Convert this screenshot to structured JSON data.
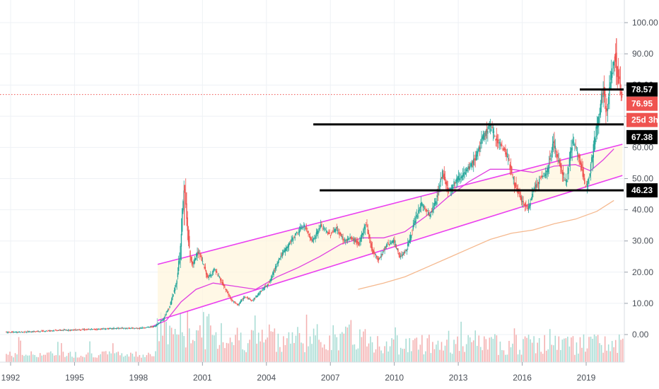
{
  "chart_data": {
    "type": "candlestick",
    "x_ticks": [
      "1992",
      "1995",
      "1998",
      "2001",
      "2004",
      "2007",
      "2010",
      "2013",
      "2016",
      "2019"
    ],
    "y_ticks": [
      "100.00",
      "90.00",
      "80.00",
      "70.00",
      "60.00",
      "50.00",
      "40.00",
      "30.00",
      "20.00",
      "10.00",
      "0.00"
    ],
    "ylim": [
      -8,
      103
    ],
    "grid": true,
    "price_tags": [
      {
        "label": "78.57",
        "style": "level"
      },
      {
        "label": "76.95",
        "style": "last-price"
      },
      {
        "label": "25d 3h",
        "style": "countdown"
      },
      {
        "label": "67.38",
        "style": "level"
      },
      {
        "label": "46.23",
        "style": "level"
      }
    ],
    "horizontal_levels": [
      {
        "value": 78.57,
        "from_year": 2018.7,
        "to_year": 2020.5
      },
      {
        "value": 67.38,
        "from_year": 2006.2,
        "to_year": 2020.5
      },
      {
        "value": 46.23,
        "from_year": 2006.5,
        "to_year": 2020.5
      }
    ],
    "last_price_line": 76.95,
    "channel_lines": [
      {
        "name": "upper",
        "from": [
          1998.9,
          22.5
        ],
        "to": [
          2020.7,
          61
        ]
      },
      {
        "name": "lower",
        "from": [
          1998.9,
          4.5
        ],
        "to": [
          2020.7,
          51
        ]
      }
    ],
    "moving_averages": [
      {
        "color": "#e040e0",
        "points": [
          [
            1998.6,
            2.5
          ],
          [
            1999.3,
            4.5
          ],
          [
            2000.0,
            10.5
          ],
          [
            2000.7,
            14.5
          ],
          [
            2001.5,
            16.5
          ],
          [
            2002.5,
            15.5
          ],
          [
            2003.5,
            14.5
          ],
          [
            2004.5,
            18.5
          ],
          [
            2005.5,
            21.5
          ],
          [
            2006.5,
            25
          ],
          [
            2007.5,
            29
          ],
          [
            2008.5,
            31
          ],
          [
            2009.5,
            31
          ],
          [
            2010.5,
            33
          ],
          [
            2011.5,
            38
          ],
          [
            2012.5,
            44
          ],
          [
            2013.5,
            49
          ],
          [
            2014.5,
            53
          ],
          [
            2015.5,
            53
          ],
          [
            2016.5,
            52
          ],
          [
            2017.5,
            54
          ],
          [
            2018.5,
            54.5
          ],
          [
            2019.2,
            52.5
          ],
          [
            2019.8,
            56
          ],
          [
            2020.3,
            59.5
          ]
        ]
      },
      {
        "color": "#f5b98f",
        "points": [
          [
            2008.3,
            14.5
          ],
          [
            2009.5,
            16.5
          ],
          [
            2010.5,
            18.5
          ],
          [
            2011.5,
            21.5
          ],
          [
            2012.5,
            24.5
          ],
          [
            2013.5,
            27.5
          ],
          [
            2014.5,
            30.5
          ],
          [
            2015.5,
            32.5
          ],
          [
            2016.5,
            33.5
          ],
          [
            2017.5,
            35.5
          ],
          [
            2018.5,
            37
          ],
          [
            2019.5,
            39.5
          ],
          [
            2020.3,
            43
          ]
        ]
      }
    ],
    "price_path": [
      [
        1991.8,
        0.7
      ],
      [
        1993.0,
        0.9
      ],
      [
        1994.0,
        1.3
      ],
      [
        1995.0,
        1.5
      ],
      [
        1996.0,
        1.7
      ],
      [
        1997.0,
        2.0
      ],
      [
        1998.0,
        2.0
      ],
      [
        1998.8,
        2.6
      ],
      [
        1999.2,
        5
      ],
      [
        1999.5,
        9
      ],
      [
        1999.8,
        16
      ],
      [
        2000.0,
        27
      ],
      [
        2000.1,
        40
      ],
      [
        2000.2,
        48
      ],
      [
        2000.3,
        37
      ],
      [
        2000.45,
        25
      ],
      [
        2000.6,
        22
      ],
      [
        2000.8,
        27
      ],
      [
        2001.0,
        24
      ],
      [
        2001.3,
        18
      ],
      [
        2001.6,
        21
      ],
      [
        2002.0,
        16
      ],
      [
        2002.4,
        11
      ],
      [
        2002.7,
        9.5
      ],
      [
        2003.0,
        12
      ],
      [
        2003.4,
        11
      ],
      [
        2003.8,
        14
      ],
      [
        2004.2,
        17
      ],
      [
        2004.6,
        24
      ],
      [
        2005.0,
        28
      ],
      [
        2005.4,
        32
      ],
      [
        2005.8,
        35
      ],
      [
        2006.2,
        30
      ],
      [
        2006.6,
        35
      ],
      [
        2007.0,
        32
      ],
      [
        2007.3,
        34
      ],
      [
        2007.7,
        30
      ],
      [
        2008.0,
        31
      ],
      [
        2008.4,
        29
      ],
      [
        2008.7,
        36
      ],
      [
        2009.0,
        27
      ],
      [
        2009.3,
        24
      ],
      [
        2009.7,
        29
      ],
      [
        2010.0,
        30
      ],
      [
        2010.3,
        25
      ],
      [
        2010.6,
        27
      ],
      [
        2010.9,
        34
      ],
      [
        2011.3,
        42
      ],
      [
        2011.7,
        38
      ],
      [
        2012.0,
        43
      ],
      [
        2012.3,
        52
      ],
      [
        2012.6,
        46
      ],
      [
        2013.0,
        50
      ],
      [
        2013.4,
        52
      ],
      [
        2013.8,
        56
      ],
      [
        2014.2,
        63
      ],
      [
        2014.5,
        67
      ],
      [
        2014.9,
        62
      ],
      [
        2015.3,
        58
      ],
      [
        2015.7,
        48
      ],
      [
        2016.0,
        43
      ],
      [
        2016.3,
        40
      ],
      [
        2016.6,
        47
      ],
      [
        2016.9,
        50
      ],
      [
        2017.2,
        52
      ],
      [
        2017.5,
        62
      ],
      [
        2017.8,
        54
      ],
      [
        2018.1,
        49
      ],
      [
        2018.4,
        62
      ],
      [
        2018.7,
        57
      ],
      [
        2019.0,
        47
      ],
      [
        2019.2,
        52
      ],
      [
        2019.5,
        65
      ],
      [
        2019.7,
        73
      ],
      [
        2019.85,
        80
      ],
      [
        2020.0,
        70
      ],
      [
        2020.2,
        83
      ],
      [
        2020.4,
        90
      ],
      [
        2020.55,
        82
      ],
      [
        2020.7,
        76.95
      ]
    ]
  }
}
